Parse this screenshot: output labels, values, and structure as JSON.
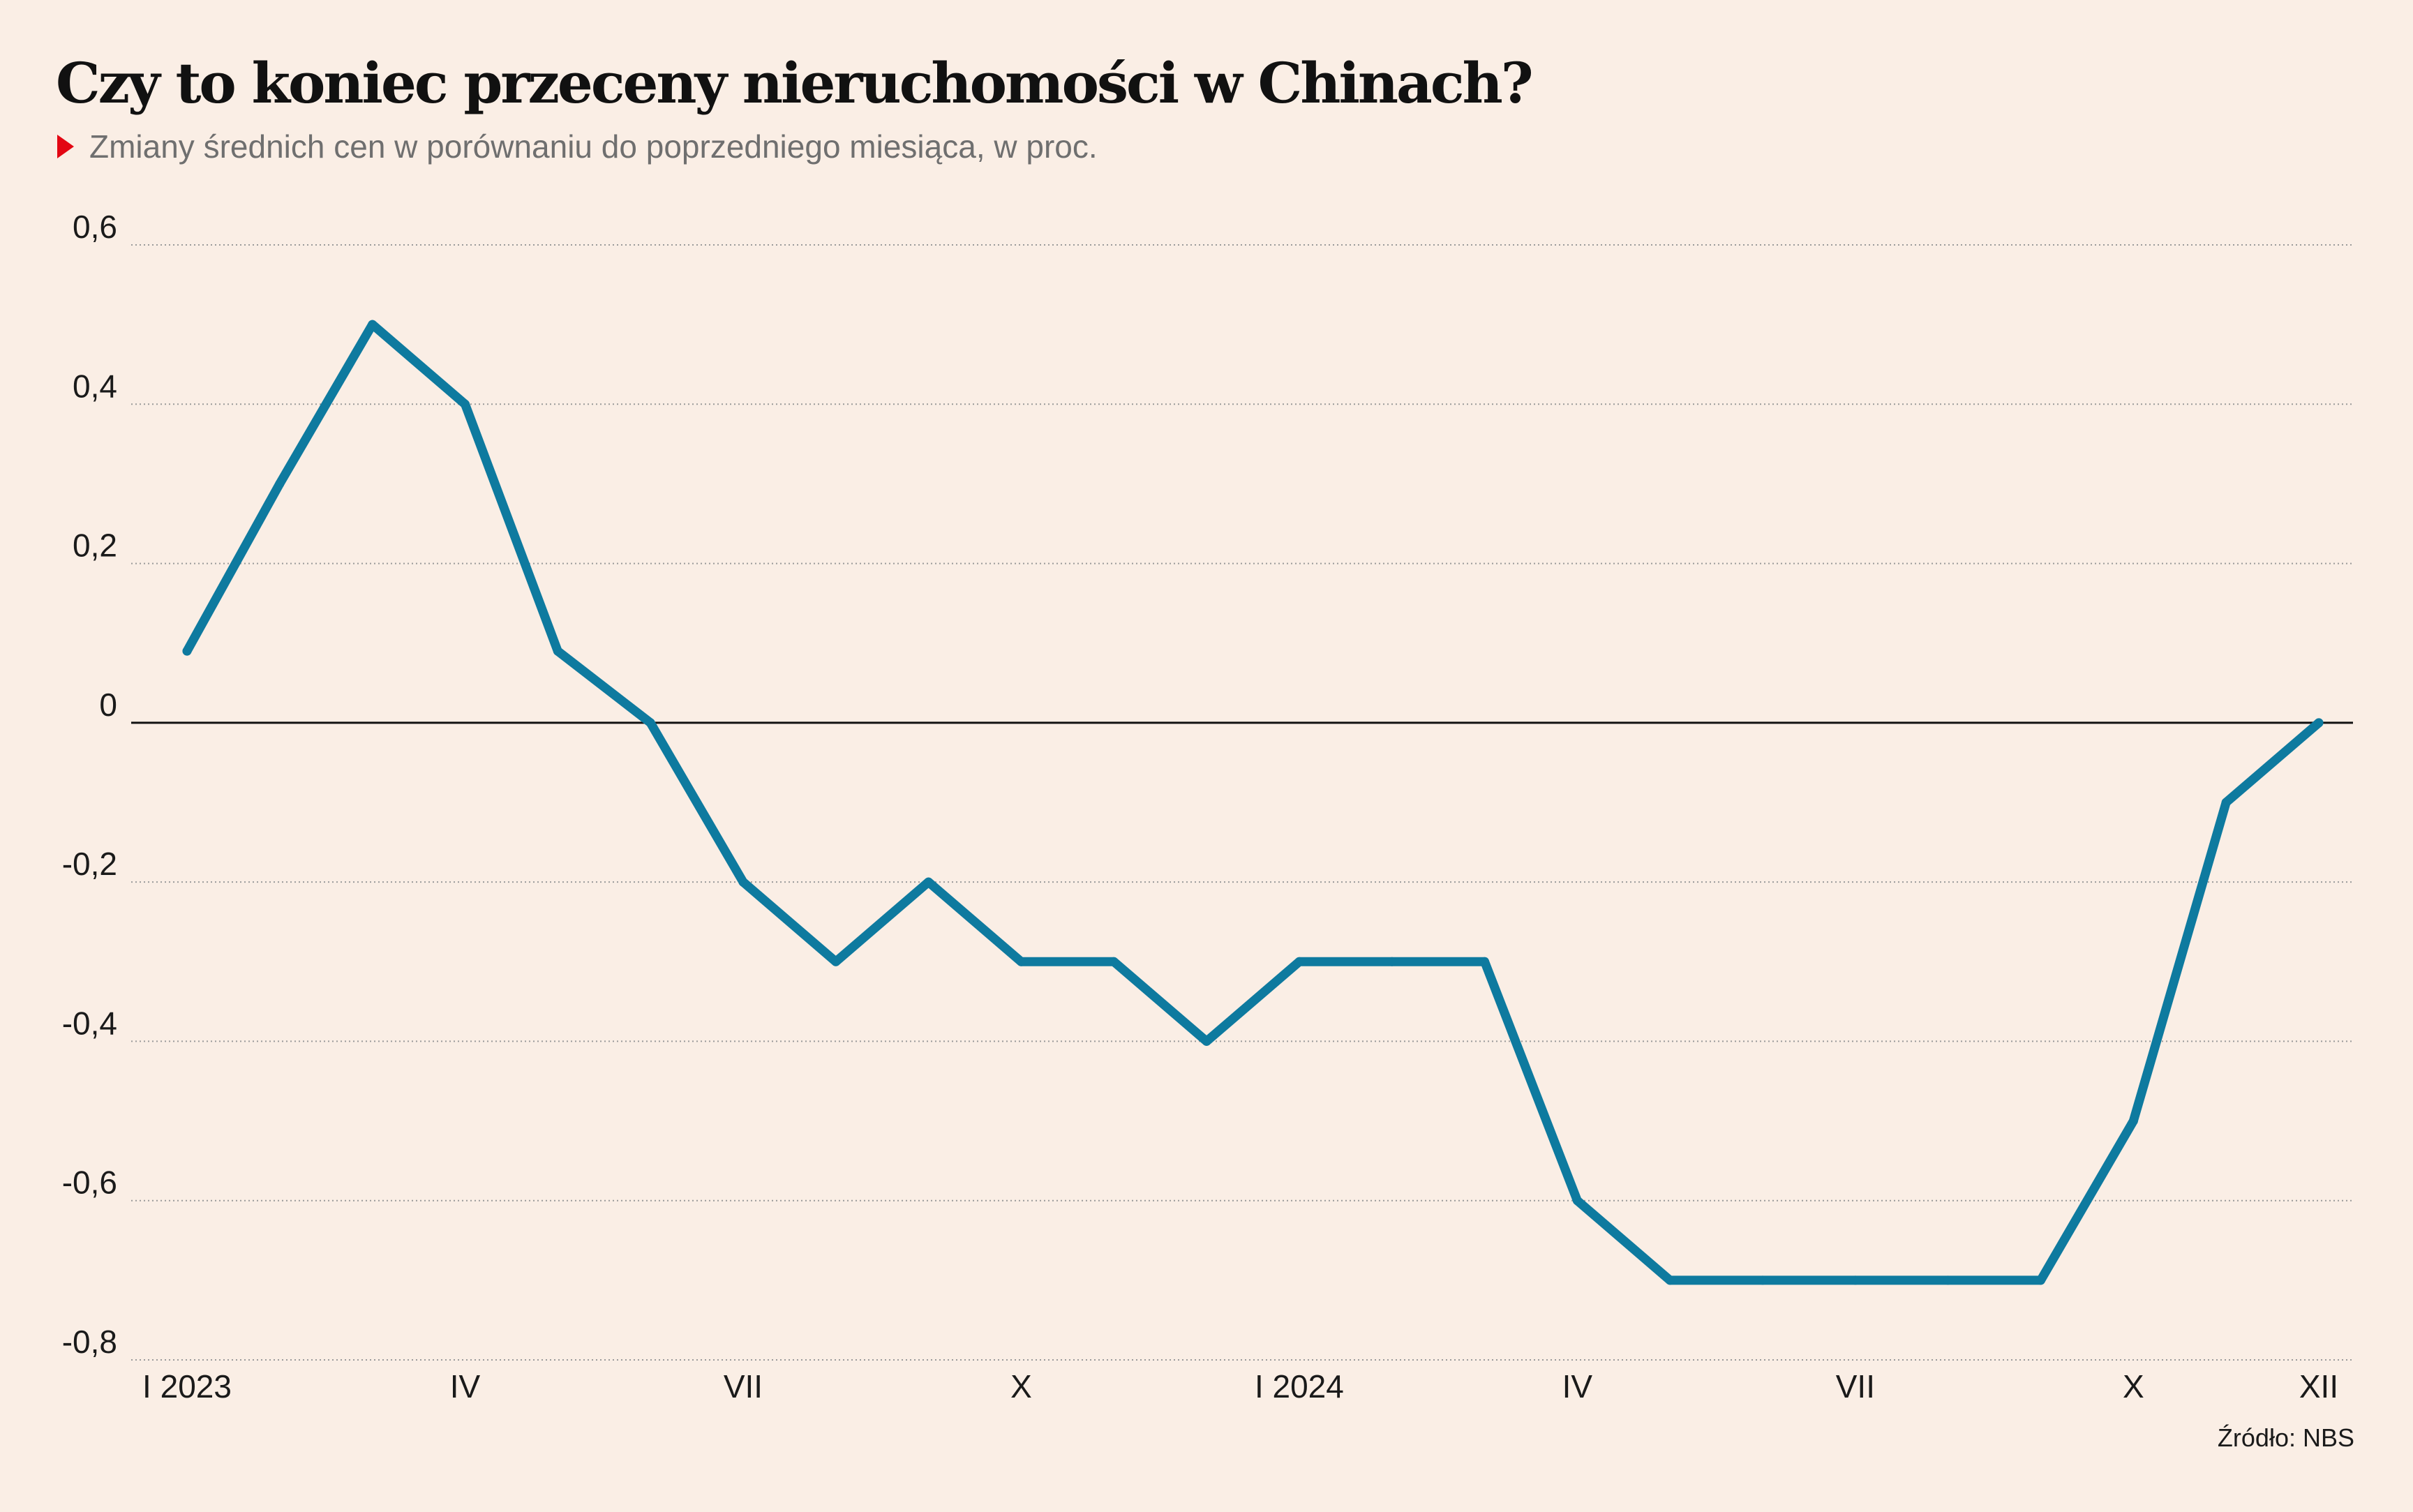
{
  "title": "Czy to koniec przeceny nieruchomości w Chinach?",
  "subtitle": "Zmiany średnich cen w porównaniu do poprzedniego miesiąca, w proc.",
  "source": "Źródło: NBS",
  "colors": {
    "background": "#faeee5",
    "line": "#0e7a9f",
    "marker": "#e30613",
    "grid": "#9a9a9a",
    "zero_line": "#111111"
  },
  "chart_data": {
    "type": "line",
    "title": "Czy to koniec przeceny nieruchomości w Chinach?",
    "subtitle": "Zmiany średnich cen w porównaniu do poprzedniego miesiąca, w proc.",
    "x": [
      "2023-01",
      "2023-02",
      "2023-03",
      "2023-04",
      "2023-05",
      "2023-06",
      "2023-07",
      "2023-08",
      "2023-09",
      "2023-10",
      "2023-11",
      "2023-12",
      "2024-01",
      "2024-02",
      "2024-03",
      "2024-04",
      "2024-05",
      "2024-06",
      "2024-07",
      "2024-08",
      "2024-09",
      "2024-10",
      "2024-11",
      "2024-12"
    ],
    "series": [
      {
        "values": [
          0.09,
          0.3,
          0.5,
          0.4,
          0.09,
          0.0,
          -0.2,
          -0.3,
          -0.2,
          -0.3,
          -0.3,
          -0.4,
          -0.3,
          -0.3,
          -0.3,
          -0.6,
          -0.7,
          -0.7,
          -0.7,
          -0.7,
          -0.7,
          -0.5,
          -0.1,
          0.0
        ]
      }
    ],
    "x_ticks": [
      {
        "x": "2023-01",
        "label": "I 2023"
      },
      {
        "x": "2023-04",
        "label": "IV"
      },
      {
        "x": "2023-07",
        "label": "VII"
      },
      {
        "x": "2023-10",
        "label": "X"
      },
      {
        "x": "2024-01",
        "label": "I 2024"
      },
      {
        "x": "2024-04",
        "label": "IV"
      },
      {
        "x": "2024-07",
        "label": "VII"
      },
      {
        "x": "2024-10",
        "label": "X"
      },
      {
        "x": "2024-12",
        "label": "XII"
      }
    ],
    "y_ticks": [
      {
        "value": 0.6,
        "label": "0,6"
      },
      {
        "value": 0.4,
        "label": "0,4"
      },
      {
        "value": 0.2,
        "label": "0,2"
      },
      {
        "value": 0,
        "label": "0"
      },
      {
        "value": -0.2,
        "label": "-0,2"
      },
      {
        "value": -0.4,
        "label": "-0,4"
      },
      {
        "value": -0.6,
        "label": "-0,6"
      },
      {
        "value": -0.8,
        "label": "-0,8"
      }
    ],
    "ylim": [
      -0.8,
      0.6
    ],
    "grid": true,
    "xlabel": "",
    "ylabel": ""
  }
}
